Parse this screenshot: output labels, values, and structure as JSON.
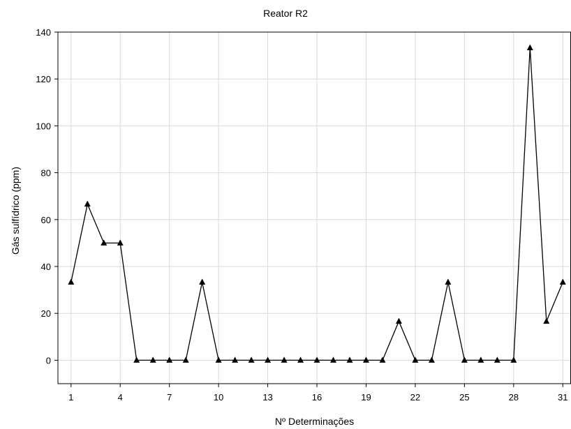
{
  "chart_data": {
    "type": "line",
    "title": "Reator R2",
    "xlabel": "Nº Determinações",
    "ylabel": "Gás sulfídrico (ppm)",
    "xlim": [
      0.2,
      31.5
    ],
    "ylim": [
      -10,
      140
    ],
    "x_ticks": [
      1,
      4,
      7,
      10,
      13,
      16,
      19,
      22,
      25,
      28,
      31
    ],
    "y_ticks": [
      0,
      20,
      40,
      60,
      80,
      100,
      120,
      140
    ],
    "grid": true,
    "marker": "triangle",
    "series": [
      {
        "x": [
          1,
          2,
          3,
          4,
          5,
          6,
          7,
          8,
          9,
          10,
          11,
          12,
          13,
          14,
          15,
          16,
          17,
          18,
          19,
          20,
          21,
          22,
          23,
          24,
          25,
          26,
          27,
          28,
          29,
          30,
          31
        ],
        "values": [
          33.3,
          66.6,
          50,
          50,
          0,
          0,
          0,
          0,
          33.3,
          0,
          0,
          0,
          0,
          0,
          0,
          0,
          0,
          0,
          0,
          0,
          16.6,
          0,
          0,
          33.3,
          0,
          0,
          0,
          0,
          133.3,
          16.6,
          33.3
        ]
      }
    ],
    "line_color": "#000000",
    "grid_color": "#d9d9d9"
  }
}
